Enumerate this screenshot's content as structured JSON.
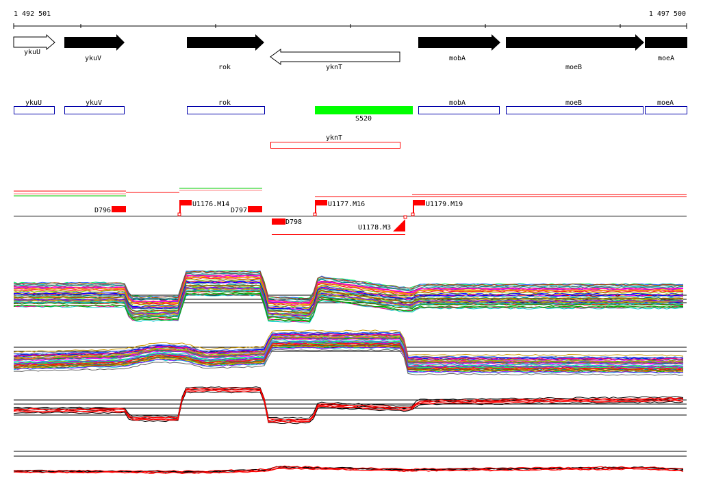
{
  "coords": {
    "start": "1 492 501",
    "end": "1 497 500"
  },
  "arrows": [
    {
      "label": "ykuU"
    },
    {
      "label": "ykuV"
    },
    {
      "label": "rok"
    },
    {
      "label": "yknT"
    },
    {
      "label": "mobA"
    },
    {
      "label": "moeB"
    },
    {
      "label": "moeA"
    }
  ],
  "boxes": [
    {
      "label": "ykuU"
    },
    {
      "label": "ykuV"
    },
    {
      "label": "rok"
    },
    {
      "label": "mobA"
    },
    {
      "label": "moeB"
    },
    {
      "label": "moeA"
    }
  ],
  "green_segment": {
    "label": "S520",
    "color": "#00ff00"
  },
  "red_box": {
    "label": "yknT"
  },
  "markers": {
    "deletions": [
      "D796",
      "D797",
      "D798"
    ],
    "flags": [
      "U1176.M14",
      "U1177.M16",
      "U1178.M3",
      "U1179.M19"
    ]
  },
  "colors": {
    "forward_gene": "#000000",
    "annotation_box": "#0000aa",
    "marker": "#ff0000",
    "highlight": "#00ff00"
  }
}
